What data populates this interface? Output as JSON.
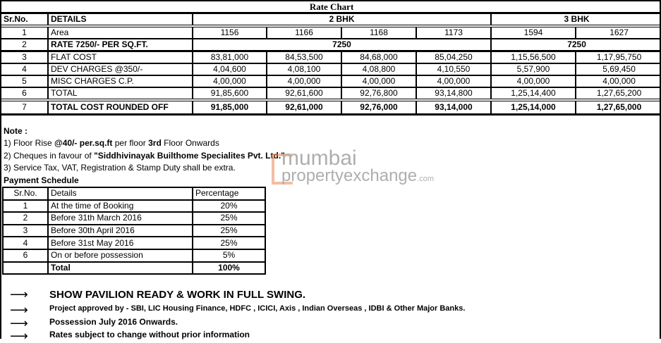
{
  "title": "Rate Chart",
  "rate_table": {
    "headers": {
      "sr": "Sr.No.",
      "details": "DETAILS",
      "group1": "2 BHK",
      "group2": "3 BHK"
    },
    "rows": [
      {
        "sr": "1",
        "label": "Area",
        "values": [
          "1156",
          "1166",
          "1168",
          "1173",
          "1594",
          "1627"
        ]
      },
      {
        "sr": "2",
        "label": "RATE 7250/- PER SQ.FT.",
        "rate_2bhk": "7250",
        "rate_3bhk": "7250"
      },
      {
        "sr": "3",
        "label": "FLAT COST",
        "values": [
          "83,81,000",
          "84,53,500",
          "84,68,000",
          "85,04,250",
          "1,15,56,500",
          "1,17,95,750"
        ]
      },
      {
        "sr": "4",
        "label": "DEV CHARGES @350/-",
        "values": [
          "4,04,600",
          "4,08,100",
          "4,08,800",
          "4,10,550",
          "5,57,900",
          "5,69,450"
        ]
      },
      {
        "sr": "5",
        "label": "MISC CHARGES C.P.",
        "values": [
          "4,00,000",
          "4,00,000",
          "4,00,000",
          "4,00,000",
          "4,00,000",
          "4,00,000"
        ]
      },
      {
        "sr": "6",
        "label": "TOTAL",
        "values": [
          "91,85,600",
          "92,61,600",
          "92,76,800",
          "93,14,800",
          "1,25,14,400",
          "1,27,65,200"
        ]
      },
      {
        "sr": "7",
        "label": "TOTAL COST ROUNDED OFF",
        "values": [
          "91,85,000",
          "92,61,000",
          "92,76,000",
          "93,14,000",
          "1,25,14,000",
          "1,27,65,000"
        ]
      }
    ]
  },
  "notes": {
    "heading": "Note :",
    "n1": {
      "a": "1) Floor Rise ",
      "b": "@40/- per.sq.ft",
      "c": " per floor ",
      "d": "3rd",
      "e": " Floor Onwards"
    },
    "n2": {
      "a": "2) Cheques in favour of ",
      "b": "\"Siddhivinayak Builthome Specialites Pvt. Ltd.\""
    },
    "n3": "3) Service Tax, VAT, Registration & Stamp Duty shall be extra."
  },
  "payment": {
    "heading": "Payment  Schedule",
    "headers": {
      "sr": "Sr.No.",
      "details": "Details",
      "pct": "Percentage"
    },
    "rows": [
      {
        "sr": "1",
        "details": "At the time of Booking",
        "pct": "20%"
      },
      {
        "sr": "2",
        "details": "Before 31th March 2016",
        "pct": "25%"
      },
      {
        "sr": "3",
        "details": "Before 30th April 2016",
        "pct": "25%"
      },
      {
        "sr": "4",
        "details": "Before 31st May 2016",
        "pct": "25%"
      },
      {
        "sr": "6",
        "details": "On or before possession",
        "pct": "5%"
      }
    ],
    "total_label": "Total",
    "total_pct": "100%"
  },
  "bullets": {
    "arrow": "⟶",
    "items": [
      "SHOW PAVILION READY & WORK IN FULL SWING.",
      "Project approved by - SBI, LIC Housing Finance, HDFC , ICICI, Axis , Indian Overseas , IDBI & Other Major Banks.",
      "Possession July 2016 Onwards.",
      "Rates subject to change without prior information"
    ]
  },
  "watermark": {
    "line1": "mumbai",
    "line2": "propertyexchange",
    "suffix": ".com",
    "logo_color": "#e98a5a"
  }
}
